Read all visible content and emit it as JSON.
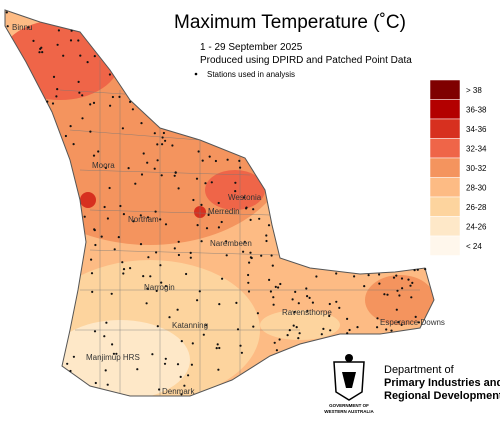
{
  "header": {
    "title": "Maximum Temperature (˚C)",
    "period": "1 - 29 September 2025",
    "source": "Produced using DPIRD and Patched Point Data",
    "stations_note": "Stations used in analysis"
  },
  "legend": [
    {
      "label": "> 38",
      "color": "#7f0000"
    },
    {
      "label": "36-38",
      "color": "#b30000"
    },
    {
      "label": "34-36",
      "color": "#d7301f"
    },
    {
      "label": "32-34",
      "color": "#ef6548"
    },
    {
      "label": "30-32",
      "color": "#f4945e"
    },
    {
      "label": "28-30",
      "color": "#fdbb84"
    },
    {
      "label": "26-28",
      "color": "#fdd49e"
    },
    {
      "label": "24-26",
      "color": "#fee8c8"
    },
    {
      "label": "< 24",
      "color": "#fff7ec"
    }
  ],
  "places": [
    "Binnu",
    "Moora",
    "Northam",
    "Westonia",
    "Merredin",
    "Narembeen",
    "Narrogin",
    "Ravensthorpe",
    "Esperance Downs",
    "Katanning",
    "Manjimup HRS",
    "Denmark"
  ],
  "department": {
    "line1": "Department of",
    "line2": "Primary Industries and",
    "line3": "Regional Development",
    "gov1": "GOVERNMENT OF",
    "gov2": "WESTERN AUSTRALIA"
  }
}
